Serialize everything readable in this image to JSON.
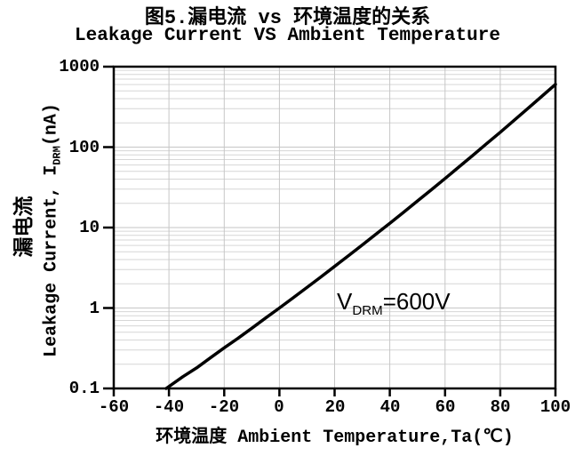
{
  "title": {
    "zh": "图5.漏电流 vs 环境温度的关系",
    "en": "Leakage Current VS Ambient Temperature"
  },
  "y_axis": {
    "label_zh": "漏电流",
    "label_prefix": "Leakage Current, I",
    "label_sub": "DRM",
    "label_suffix": "(nA)"
  },
  "x_axis": {
    "label": "环境温度 Ambient Temperature,Ta(℃)"
  },
  "annotation": {
    "prefix": "V",
    "sub": "DRM",
    "suffix": "=600V"
  },
  "chart_data": {
    "type": "line",
    "title": "图5.漏电流 vs 环境温度的关系 / Leakage Current VS Ambient Temperature",
    "xlabel": "环境温度 Ambient Temperature,Ta(℃)",
    "ylabel": "Leakage Current, IDRM(nA) 漏电流",
    "x_scale": "linear",
    "y_scale": "log",
    "xlim": [
      -60,
      100
    ],
    "ylim": [
      0.1,
      1000
    ],
    "x_ticks": [
      -60,
      -40,
      -20,
      0,
      20,
      40,
      60,
      80,
      100
    ],
    "y_ticks": [
      1000,
      100,
      10,
      1,
      0.1
    ],
    "grid": true,
    "legend": "none",
    "series": [
      {
        "name": "VDRM=600V",
        "x": [
          -41,
          -35,
          -30,
          -25,
          -20,
          -15,
          -10,
          -5,
          0,
          5,
          10,
          15,
          20,
          25,
          30,
          35,
          40,
          45,
          50,
          55,
          60,
          65,
          70,
          75,
          80,
          85,
          90,
          95,
          100
        ],
        "y": [
          0.1,
          0.14,
          0.18,
          0.24,
          0.32,
          0.42,
          0.56,
          0.75,
          1.0,
          1.34,
          1.8,
          2.43,
          3.29,
          4.46,
          6.07,
          8.28,
          11.3,
          15.5,
          21.4,
          29.4,
          40.7,
          56.5,
          78.5,
          110,
          153,
          215,
          302,
          426,
          602
        ],
        "color": "#000000",
        "width": 3.5
      }
    ],
    "colors": {
      "grid_minor": "#d6d6d6",
      "grid_major": "#c6c6c6",
      "axis": "#000000",
      "background": "#ffffff"
    }
  }
}
